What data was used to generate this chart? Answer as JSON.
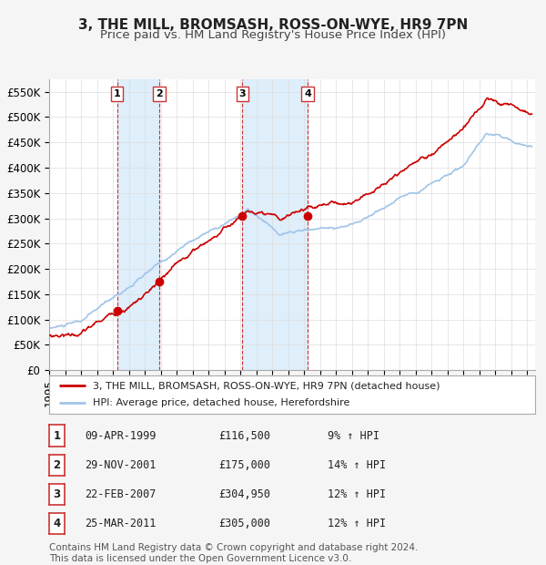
{
  "title": "3, THE MILL, BROMSASH, ROSS-ON-WYE, HR9 7PN",
  "subtitle": "Price paid vs. HM Land Registry's House Price Index (HPI)",
  "hpi_label": "HPI: Average price, detached house, Herefordshire",
  "property_label": "3, THE MILL, BROMSASH, ROSS-ON-WYE, HR9 7PN (detached house)",
  "xlim_start": 1995.0,
  "xlim_end": 2025.5,
  "ylim_min": 0,
  "ylim_max": 575000,
  "yticks": [
    0,
    50000,
    100000,
    150000,
    200000,
    250000,
    300000,
    350000,
    400000,
    450000,
    500000,
    550000
  ],
  "ytick_labels": [
    "£0",
    "£50K",
    "£100K",
    "£150K",
    "£200K",
    "£250K",
    "£300K",
    "£350K",
    "£400K",
    "£450K",
    "£500K",
    "£550K"
  ],
  "hpi_color": "#a0c4e8",
  "property_color": "#cc0000",
  "sale_dot_color": "#cc0000",
  "shade_color": "#d0e8f8",
  "dashed_line_color": "#cc3333",
  "transactions": [
    {
      "num": 1,
      "date_num": 1999.27,
      "price": 116500,
      "label": "09-APR-1999",
      "price_str": "£116,500",
      "pct": "9% ↑ HPI"
    },
    {
      "num": 2,
      "date_num": 2001.91,
      "price": 175000,
      "label": "29-NOV-2001",
      "price_str": "£175,000",
      "pct": "14% ↑ HPI"
    },
    {
      "num": 3,
      "date_num": 2007.13,
      "price": 304950,
      "label": "22-FEB-2007",
      "price_str": "£304,950",
      "pct": "12% ↑ HPI"
    },
    {
      "num": 4,
      "date_num": 2011.23,
      "price": 305000,
      "label": "25-MAR-2011",
      "price_str": "£305,000",
      "pct": "12% ↑ HPI"
    }
  ],
  "footer": "Contains HM Land Registry data © Crown copyright and database right 2024.\nThis data is licensed under the Open Government Licence v3.0.",
  "background_color": "#f5f5f5",
  "plot_bg_color": "#ffffff",
  "title_fontsize": 11,
  "subtitle_fontsize": 9.5,
  "axis_fontsize": 8.5,
  "footer_fontsize": 7.5
}
